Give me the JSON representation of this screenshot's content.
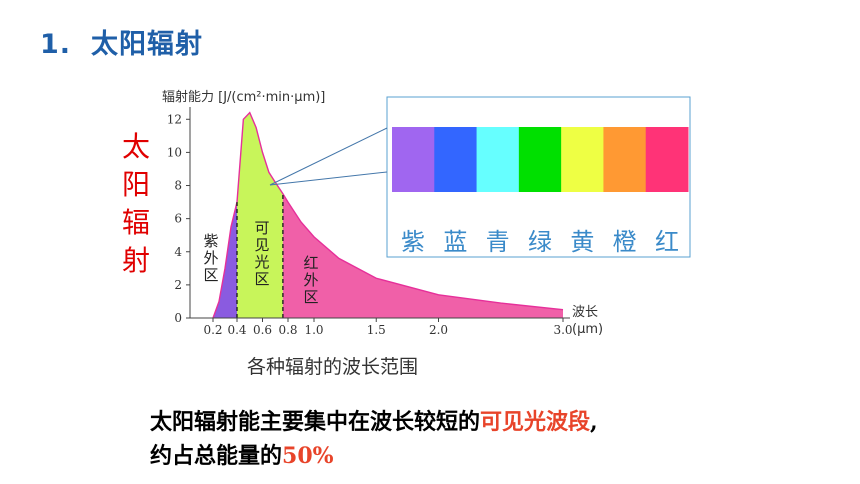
{
  "heading": {
    "number": "1.",
    "title": "太阳辐射"
  },
  "side_label": [
    "太",
    "阳",
    "辐",
    "射"
  ],
  "caption": "各种辐射的波长范围",
  "summary": {
    "line1_prefix": "太阳辐射能主要集中在波长较短的",
    "line1_highlight": "可见光波段",
    "line1_suffix": ",",
    "line2_prefix": "约占总能量的",
    "line2_highlight": "50%"
  },
  "spectrum": {
    "colors": [
      "#a066f0",
      "#3366ff",
      "#66ffff",
      "#00e000",
      "#eeff44",
      "#ff9933",
      "#ff3377"
    ],
    "names": [
      "紫",
      "蓝",
      "青",
      "绿",
      "黄",
      "橙",
      "红"
    ]
  },
  "chart_data": {
    "type": "area",
    "ylabel": "辐射能力 [J/(cm²·min·μm)]",
    "xlabel": "波长 (μm)",
    "xlabel_parts": [
      "波长",
      "(μm)"
    ],
    "xticks": [
      "0.2",
      "0.4",
      "0.6",
      "0.8",
      "1.0",
      "1.5",
      "2.0",
      "3.0"
    ],
    "yticks": [
      "0",
      "2",
      "4",
      "6",
      "8",
      "10",
      "12"
    ],
    "ylim": [
      0,
      12.5
    ],
    "regions": [
      {
        "name": "紫外区",
        "x_range": [
          0.2,
          0.4
        ],
        "color": "#8a5be0"
      },
      {
        "name": "可见光区",
        "x_range": [
          0.4,
          0.76
        ],
        "color": "#c8f55a"
      },
      {
        "name": "红外区",
        "x_range": [
          0.76,
          3.0
        ],
        "color": "#f060a8"
      }
    ],
    "x": [
      0.2,
      0.25,
      0.3,
      0.35,
      0.4,
      0.45,
      0.5,
      0.55,
      0.6,
      0.65,
      0.7,
      0.76,
      0.8,
      0.9,
      1.0,
      1.2,
      1.5,
      2.0,
      2.5,
      3.0
    ],
    "y": [
      0.0,
      1.0,
      3.0,
      5.5,
      7.0,
      12.0,
      12.4,
      11.5,
      10.0,
      8.8,
      8.2,
      7.5,
      7.0,
      5.8,
      4.9,
      3.6,
      2.4,
      1.4,
      0.9,
      0.5
    ]
  }
}
